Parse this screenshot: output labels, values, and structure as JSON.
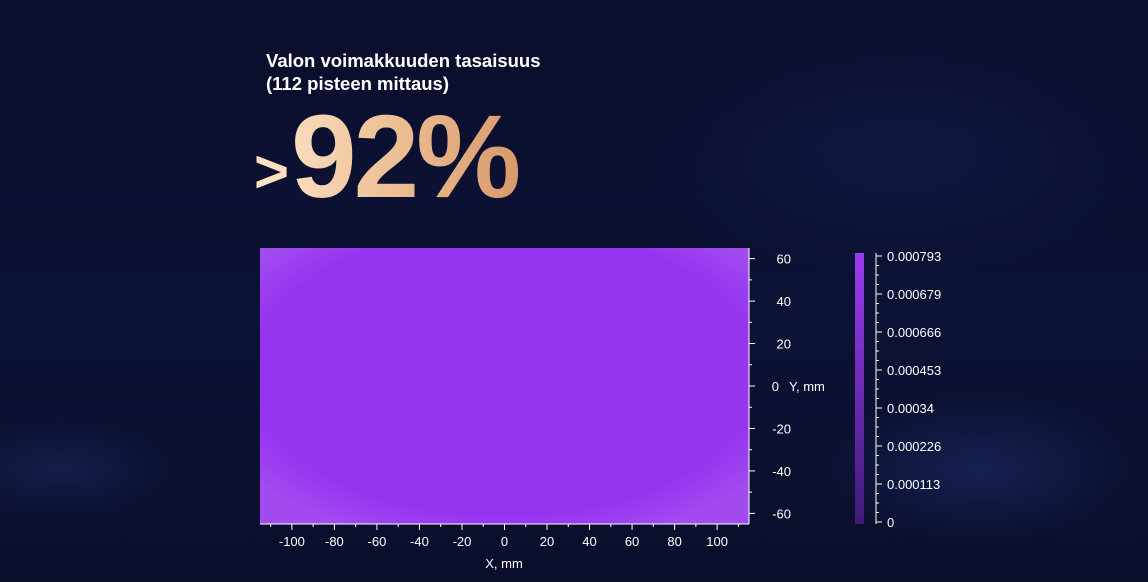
{
  "heading": {
    "line1": "Valon voimakkuuden tasaisuus",
    "line2": "(112 pisteen mittaus)"
  },
  "metric": {
    "prefix": ">",
    "value": "92%"
  },
  "chart_data": {
    "type": "heatmap",
    "xlabel": "X, mm",
    "ylabel": "Y, mm",
    "xlim": [
      -115,
      115
    ],
    "ylim": [
      -65,
      65
    ],
    "x_ticks": [
      -100,
      -80,
      -60,
      -40,
      -20,
      0,
      20,
      40,
      60,
      80,
      100
    ],
    "y_ticks": [
      60,
      40,
      20,
      0,
      -20,
      -40,
      -60
    ],
    "y_tick_labels": [
      "60",
      "40",
      "20",
      "0",
      "-20",
      "-40",
      "-60"
    ],
    "colorbar": {
      "ticks": [
        0.000793,
        0.000679,
        0.000666,
        0.000453,
        0.00034,
        0.000226,
        0.000113,
        0
      ],
      "tick_labels": [
        "0.000793",
        "0.000679",
        "0.000666",
        "0.000453",
        "0.00034",
        "0.000226",
        "0.000113",
        "0"
      ],
      "min": 0,
      "max": 0.000793,
      "color_low": "#3f1a77",
      "color_high": "#9b3bef"
    },
    "fill_color": "#9734f0",
    "edge_color": "#a24cf0",
    "uniformity_note": "uniform field near maximum"
  },
  "colors": {
    "background": "#0b0e2c",
    "text": "#ffffff",
    "accent_gold": "#e8b687"
  }
}
